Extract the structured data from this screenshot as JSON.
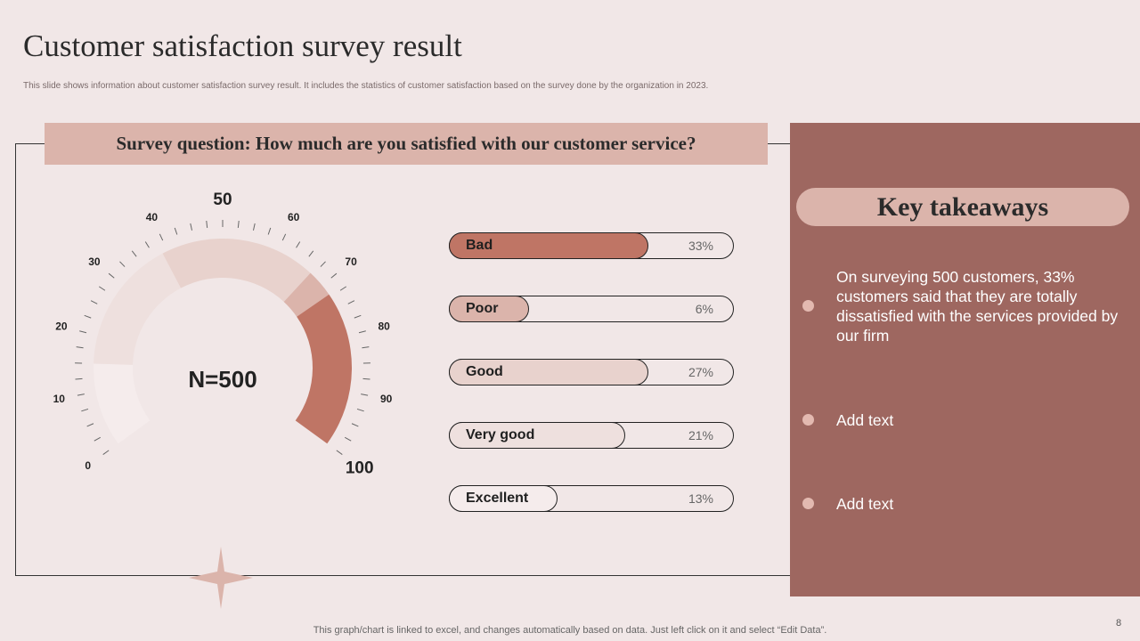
{
  "header": {
    "title": "Customer satisfaction survey result",
    "subtitle": "This slide shows information about customer satisfaction survey result. It includes the statistics of customer satisfaction based on the survey done by the organization in 2023."
  },
  "question": "Survey question: How much are you satisfied with our customer service?",
  "chart_data": [
    {
      "type": "gauge",
      "center_label": "N=500",
      "scale_labels": [
        "0",
        "10",
        "20",
        "30",
        "40",
        "50",
        "60",
        "70",
        "80",
        "90",
        "100"
      ],
      "range": [
        0,
        100
      ],
      "segments": [
        {
          "from": 0,
          "to": 15,
          "color": "#f5ecec"
        },
        {
          "from": 15,
          "to": 39,
          "color": "#eee0de"
        },
        {
          "from": 39,
          "to": 67,
          "color": "#e8d2cd"
        },
        {
          "from": 67,
          "to": 72,
          "color": "#dbb4ab"
        },
        {
          "from": 72,
          "to": 100,
          "color": "#bf7565"
        }
      ]
    },
    {
      "type": "bar",
      "categories": [
        "Bad",
        "Poor",
        "Good",
        "Very good",
        "Excellent"
      ],
      "values": [
        33,
        6,
        27,
        21,
        13
      ],
      "labels": [
        "33%",
        "6%",
        "27%",
        "21%",
        "13%"
      ],
      "colors": [
        "#bf7565",
        "#dbb4ab",
        "#e8d2cd",
        "#eee0de",
        "#f5ecec"
      ],
      "fill_fractions": [
        0.7,
        0.28,
        0.7,
        0.62,
        0.38
      ]
    }
  ],
  "takeaways": {
    "title": "Key takeaways",
    "items": [
      "On surveying 500 customers, 33% customers said that they are totally dissatisfied with the services provided by our firm",
      "Add text",
      "Add text"
    ]
  },
  "footer": "This graph/chart is linked to excel,  and changes automatically based on data. Just left click on it and select “Edit Data”.",
  "page_number": "8"
}
